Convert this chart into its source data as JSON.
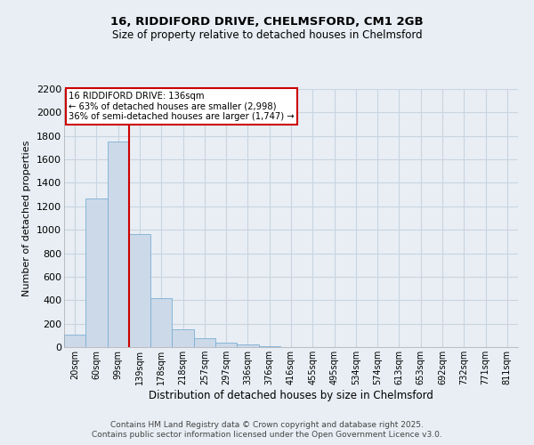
{
  "title1": "16, RIDDIFORD DRIVE, CHELMSFORD, CM1 2GB",
  "title2": "Size of property relative to detached houses in Chelmsford",
  "xlabel": "Distribution of detached houses by size in Chelmsford",
  "ylabel": "Number of detached properties",
  "categories": [
    "20sqm",
    "60sqm",
    "99sqm",
    "139sqm",
    "178sqm",
    "218sqm",
    "257sqm",
    "297sqm",
    "336sqm",
    "376sqm",
    "416sqm",
    "455sqm",
    "495sqm",
    "534sqm",
    "574sqm",
    "613sqm",
    "653sqm",
    "692sqm",
    "732sqm",
    "771sqm",
    "811sqm"
  ],
  "values": [
    110,
    1270,
    1750,
    960,
    415,
    150,
    75,
    40,
    20,
    10,
    0,
    0,
    0,
    0,
    0,
    0,
    0,
    0,
    0,
    0,
    0
  ],
  "bar_color": "#ccd9e8",
  "bar_edge_color": "#7bafd4",
  "vline_color": "#cc0000",
  "vline_x_pos": 2.5,
  "annotation_title": "16 RIDDIFORD DRIVE: 136sqm",
  "annotation_line1": "← 63% of detached houses are smaller (2,998)",
  "annotation_line2": "36% of semi-detached houses are larger (1,747) →",
  "annotation_box_color": "#ffffff",
  "annotation_box_edge": "#cc0000",
  "ylim": [
    0,
    2200
  ],
  "yticks": [
    0,
    200,
    400,
    600,
    800,
    1000,
    1200,
    1400,
    1600,
    1800,
    2000,
    2200
  ],
  "footer1": "Contains HM Land Registry data © Crown copyright and database right 2025.",
  "footer2": "Contains public sector information licensed under the Open Government Licence v3.0.",
  "bg_color": "#e8eef4",
  "grid_color": "#c8d4e0"
}
